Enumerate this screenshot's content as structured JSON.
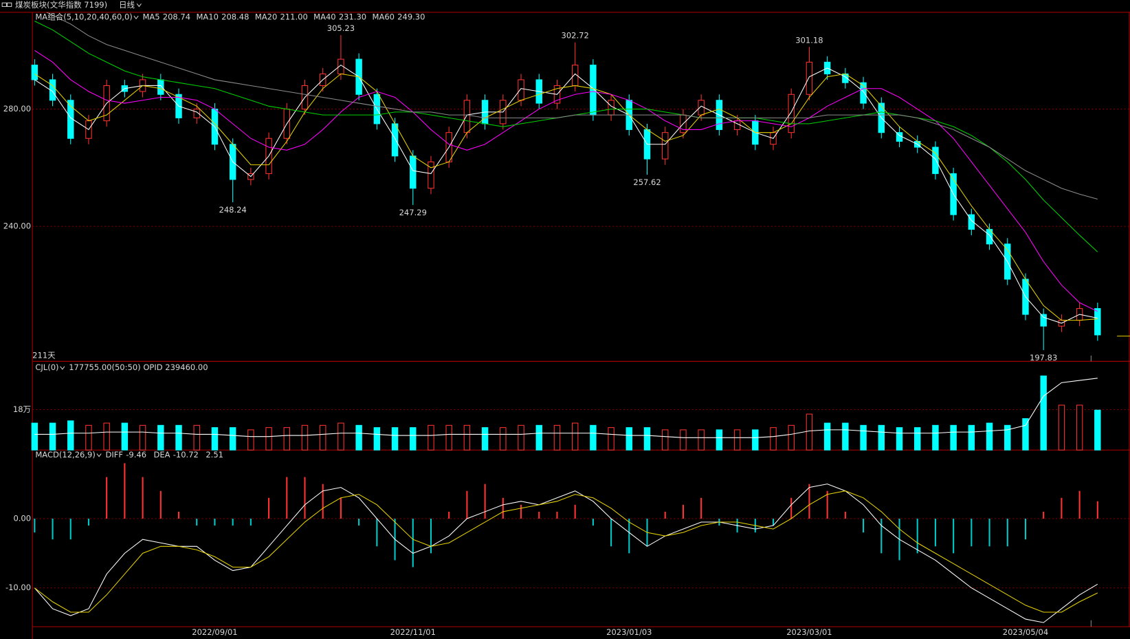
{
  "header": {
    "title": "煤炭板块(文华指数 7199)",
    "period": "日线"
  },
  "chart_data": [
    {
      "type": "candlestick",
      "indicator": "MA组合(5,10,20,40,60,0)",
      "days_label": "211天",
      "categories": [
        null,
        null,
        null,
        null,
        null,
        null,
        null,
        null,
        null,
        null,
        "2022/09/01",
        null,
        null,
        null,
        null,
        null,
        null,
        null,
        null,
        null,
        null,
        "2022/11/01",
        null,
        null,
        null,
        null,
        null,
        null,
        null,
        null,
        null,
        null,
        null,
        "2023/01/03",
        null,
        null,
        null,
        null,
        null,
        null,
        null,
        null,
        null,
        "2023/03/01",
        null,
        null,
        null,
        null,
        null,
        null,
        null,
        null,
        null,
        null,
        null,
        "2023/05/04",
        null,
        null,
        null,
        null
      ],
      "open": [
        295,
        290,
        283,
        270,
        276,
        288,
        286,
        290,
        285,
        277,
        280,
        268,
        256,
        258,
        270,
        280,
        288,
        292,
        297,
        285,
        275,
        264,
        253,
        262,
        272,
        283,
        275,
        283,
        290,
        282,
        288,
        295,
        278,
        283,
        273,
        263,
        272,
        278,
        283,
        273,
        276,
        268,
        272,
        285,
        296,
        292,
        289,
        282,
        272,
        269,
        267,
        258,
        244,
        239,
        234,
        222,
        210,
        206,
        208,
        212
      ],
      "high": [
        297,
        292,
        285,
        278,
        290,
        290,
        292,
        292,
        287,
        282,
        282,
        270,
        260,
        272,
        282,
        290,
        294,
        305.23,
        299,
        287,
        277,
        266,
        264,
        274,
        285,
        285,
        285,
        292,
        292,
        290,
        302.72,
        297,
        285,
        285,
        275,
        274,
        280,
        285,
        285,
        278,
        278,
        274,
        287,
        301.18,
        298,
        294,
        291,
        284,
        274,
        271,
        269,
        260,
        246,
        241,
        236,
        224,
        212,
        210,
        214,
        214
      ],
      "low": [
        288,
        281,
        268,
        268,
        274,
        284,
        284,
        283,
        275,
        275,
        266,
        248.24,
        254,
        256,
        268,
        278,
        286,
        290,
        283,
        273,
        262,
        247.29,
        251,
        260,
        270,
        273,
        273,
        281,
        280,
        280,
        286,
        276,
        276,
        271,
        257.62,
        261,
        270,
        276,
        271,
        271,
        266,
        266,
        270,
        283,
        290,
        287,
        280,
        270,
        267,
        265,
        256,
        242,
        237,
        232,
        220,
        208,
        197.83,
        204,
        206,
        201
      ],
      "close": [
        290,
        283,
        270,
        276,
        288,
        286,
        290,
        285,
        277,
        280,
        268,
        256,
        258,
        270,
        280,
        288,
        292,
        297,
        285,
        275,
        264,
        253,
        262,
        272,
        283,
        275,
        283,
        290,
        282,
        288,
        295,
        278,
        283,
        273,
        263,
        272,
        278,
        283,
        273,
        276,
        268,
        272,
        285,
        296,
        292,
        289,
        282,
        272,
        269,
        267,
        258,
        244,
        239,
        234,
        222,
        210,
        206,
        208,
        212,
        203
      ],
      "up_color": "#ff3232",
      "down_color": "#00ffff",
      "series": [
        {
          "name": "MA5",
          "value_label": "208.74",
          "color": "#ffffff",
          "values": [
            290,
            286,
            277,
            273,
            282,
            287,
            288,
            288,
            281,
            279,
            274,
            262,
            257,
            264,
            275,
            284,
            290,
            295,
            291,
            280,
            270,
            259,
            258,
            267,
            278,
            279,
            279,
            287,
            286,
            285,
            292,
            287,
            281,
            278,
            268,
            268,
            275,
            281,
            278,
            275,
            272,
            270,
            279,
            291,
            294,
            291,
            286,
            277,
            271,
            268,
            263,
            251,
            242,
            237,
            228,
            216,
            209,
            207,
            210,
            208.74
          ]
        },
        {
          "name": "MA10",
          "value_label": "208.48",
          "color": "#e6d200",
          "values": [
            292,
            288,
            281,
            276,
            278,
            283,
            288,
            287,
            284,
            281,
            275,
            268,
            261,
            261,
            269,
            279,
            287,
            292,
            291,
            286,
            275,
            264,
            260,
            262,
            272,
            277,
            280,
            283,
            285,
            287,
            288,
            287,
            285,
            278,
            273,
            269,
            271,
            278,
            280,
            277,
            272,
            272,
            275,
            284,
            291,
            292,
            288,
            281,
            274,
            269,
            265,
            256,
            247,
            239,
            232,
            222,
            213,
            208,
            208,
            208.48
          ]
        },
        {
          "name": "MA20",
          "value_label": "211.00",
          "color": "#ff00ff",
          "values": [
            300,
            296,
            290,
            286,
            283,
            282,
            283,
            284,
            284,
            283,
            280,
            275,
            270,
            267,
            266,
            268,
            273,
            279,
            284,
            286,
            284,
            279,
            273,
            268,
            266,
            268,
            272,
            276,
            280,
            283,
            285,
            286,
            285,
            283,
            280,
            276,
            273,
            273,
            275,
            276,
            276,
            275,
            274,
            277,
            281,
            284,
            287,
            287,
            284,
            280,
            276,
            270,
            262,
            254,
            246,
            238,
            228,
            220,
            214,
            211.0
          ]
        },
        {
          "name": "MA40",
          "value_label": "231.30",
          "color": "#00d200",
          "values": [
            310,
            307,
            303,
            299,
            296,
            293,
            291,
            290,
            289,
            288,
            287,
            285,
            283,
            281,
            280,
            279,
            278,
            278,
            278,
            278,
            279,
            279,
            278,
            277,
            276,
            275,
            274,
            275,
            276,
            277,
            278,
            279,
            280,
            280,
            280,
            279,
            278,
            277,
            277,
            277,
            277,
            276,
            275,
            275,
            276,
            277,
            278,
            279,
            278,
            277,
            276,
            274,
            271,
            267,
            262,
            256,
            249,
            243,
            237,
            231.3
          ]
        },
        {
          "name": "MA60",
          "value_label": "249.30",
          "color": "#8c8c8c",
          "values": [
            315,
            312,
            309,
            305,
            302,
            300,
            298,
            296,
            294,
            292,
            290,
            289,
            288,
            287,
            286,
            285,
            284,
            283,
            282,
            281,
            280,
            279,
            279,
            278,
            278,
            277,
            277,
            277,
            277,
            277,
            278,
            278,
            278,
            278,
            278,
            278,
            278,
            277,
            277,
            277,
            277,
            277,
            277,
            277,
            278,
            278,
            278,
            278,
            278,
            277,
            275,
            273,
            270,
            267,
            263,
            259,
            256,
            253,
            251,
            249.3
          ]
        }
      ],
      "ylim": [
        194,
        313
      ],
      "yticks": [
        {
          "value": 240,
          "label": "240.00"
        },
        {
          "value": 280,
          "label": "280.00"
        }
      ],
      "grid": true
    },
    {
      "type": "volume",
      "indicator": "CJL(0)",
      "info": "177755.00(50:50)  OPID 239460.00",
      "values": [
        12,
        12,
        13,
        11,
        12,
        12,
        11,
        11,
        11,
        11,
        10,
        10,
        9,
        10,
        10,
        11,
        11,
        12,
        11,
        10,
        10,
        10,
        11,
        11,
        11,
        10,
        10,
        11,
        11,
        11,
        12,
        11,
        10,
        10,
        10,
        9,
        9,
        9,
        9,
        9,
        9,
        10,
        11,
        16,
        12,
        12,
        11,
        11,
        10,
        10,
        11,
        11,
        11,
        12,
        11,
        14,
        33,
        20,
        20,
        17.7755
      ],
      "line": {
        "color": "#ffffff",
        "values": [
          7,
          7,
          7.5,
          7.5,
          8,
          8,
          8,
          7.5,
          7.5,
          7,
          7,
          6.5,
          6,
          6,
          6.5,
          6.5,
          7,
          7.5,
          7.5,
          7,
          6.5,
          6.5,
          6.5,
          7,
          7,
          7,
          7,
          7,
          7.5,
          7.5,
          7.5,
          7.5,
          7,
          6.5,
          6.5,
          6,
          5.5,
          5.5,
          5.5,
          5.5,
          5.5,
          6,
          7,
          8.5,
          9,
          9,
          8.5,
          8,
          7.5,
          7.5,
          7.5,
          8,
          8,
          8.5,
          9,
          11,
          24,
          30,
          31,
          32
        ]
      },
      "ylim": [
        0,
        39.5
      ],
      "yticks": [
        {
          "value": 18,
          "label": "18万"
        }
      ],
      "grid": true
    },
    {
      "type": "macd",
      "indicator": "MACD(12,26,9)",
      "histogram": {
        "value_label": "2.51",
        "up_color": "#ff3232",
        "down_color": "#00c8c8",
        "values": [
          -2,
          -3,
          -3,
          -1,
          6,
          8,
          6,
          4,
          1,
          -1,
          -1,
          -1,
          -1,
          3,
          6,
          6,
          5,
          3,
          -1,
          -4,
          -6,
          -7,
          -5,
          1,
          4,
          5,
          3,
          2,
          1,
          1,
          2,
          -1,
          -4,
          -5,
          -4,
          1,
          2,
          3,
          -1,
          -2,
          -2,
          -1,
          3,
          5,
          4,
          1,
          -2,
          -5,
          -6,
          -5,
          -4,
          -5,
          -4,
          -4,
          -4,
          -3,
          1,
          3,
          4,
          2.51
        ]
      },
      "series": [
        {
          "name": "DIFF",
          "value_label": "-9.46",
          "color": "#ffffff",
          "values": [
            -10,
            -13,
            -14,
            -13,
            -8,
            -5,
            -3,
            -3.5,
            -4,
            -4,
            -6,
            -7.5,
            -7,
            -4,
            -1,
            2,
            4,
            4.5,
            3,
            0,
            -3,
            -5,
            -4,
            -2.5,
            0,
            1,
            2,
            2.5,
            2,
            3,
            4,
            2.5,
            0,
            -2,
            -4,
            -2.5,
            -1.5,
            -0.5,
            -0.5,
            -1,
            -1.5,
            -1,
            2,
            4.5,
            5,
            4,
            2,
            -1,
            -3,
            -4.5,
            -6,
            -8,
            -10,
            -11.5,
            -13,
            -14.5,
            -15,
            -13,
            -11,
            -9.46
          ]
        },
        {
          "name": "DEA",
          "value_label": "-10.72",
          "color": "#e6d200",
          "values": [
            -10,
            -12,
            -13.5,
            -13.5,
            -11,
            -8,
            -5,
            -4,
            -4,
            -4.5,
            -5.5,
            -7,
            -7,
            -5.5,
            -3,
            -0.5,
            1.5,
            3,
            3.5,
            2,
            -0.5,
            -3,
            -4,
            -3.5,
            -2,
            -0.5,
            1,
            1.5,
            2,
            2.5,
            3.5,
            3,
            1.5,
            -0.5,
            -2,
            -2.5,
            -2,
            -1,
            -0.5,
            -0.5,
            -1,
            -1.5,
            0,
            2,
            3.5,
            4,
            3,
            1,
            -1.5,
            -3.5,
            -5,
            -6.5,
            -8,
            -9.5,
            -11,
            -12.5,
            -13.5,
            -13.5,
            -12,
            -10.72
          ]
        }
      ],
      "ylim": [
        -15.6,
        9.9
      ],
      "yticks": [
        {
          "value": -10,
          "label": "-10.00"
        },
        {
          "value": 0,
          "label": "0.00"
        }
      ],
      "grid": true
    }
  ]
}
